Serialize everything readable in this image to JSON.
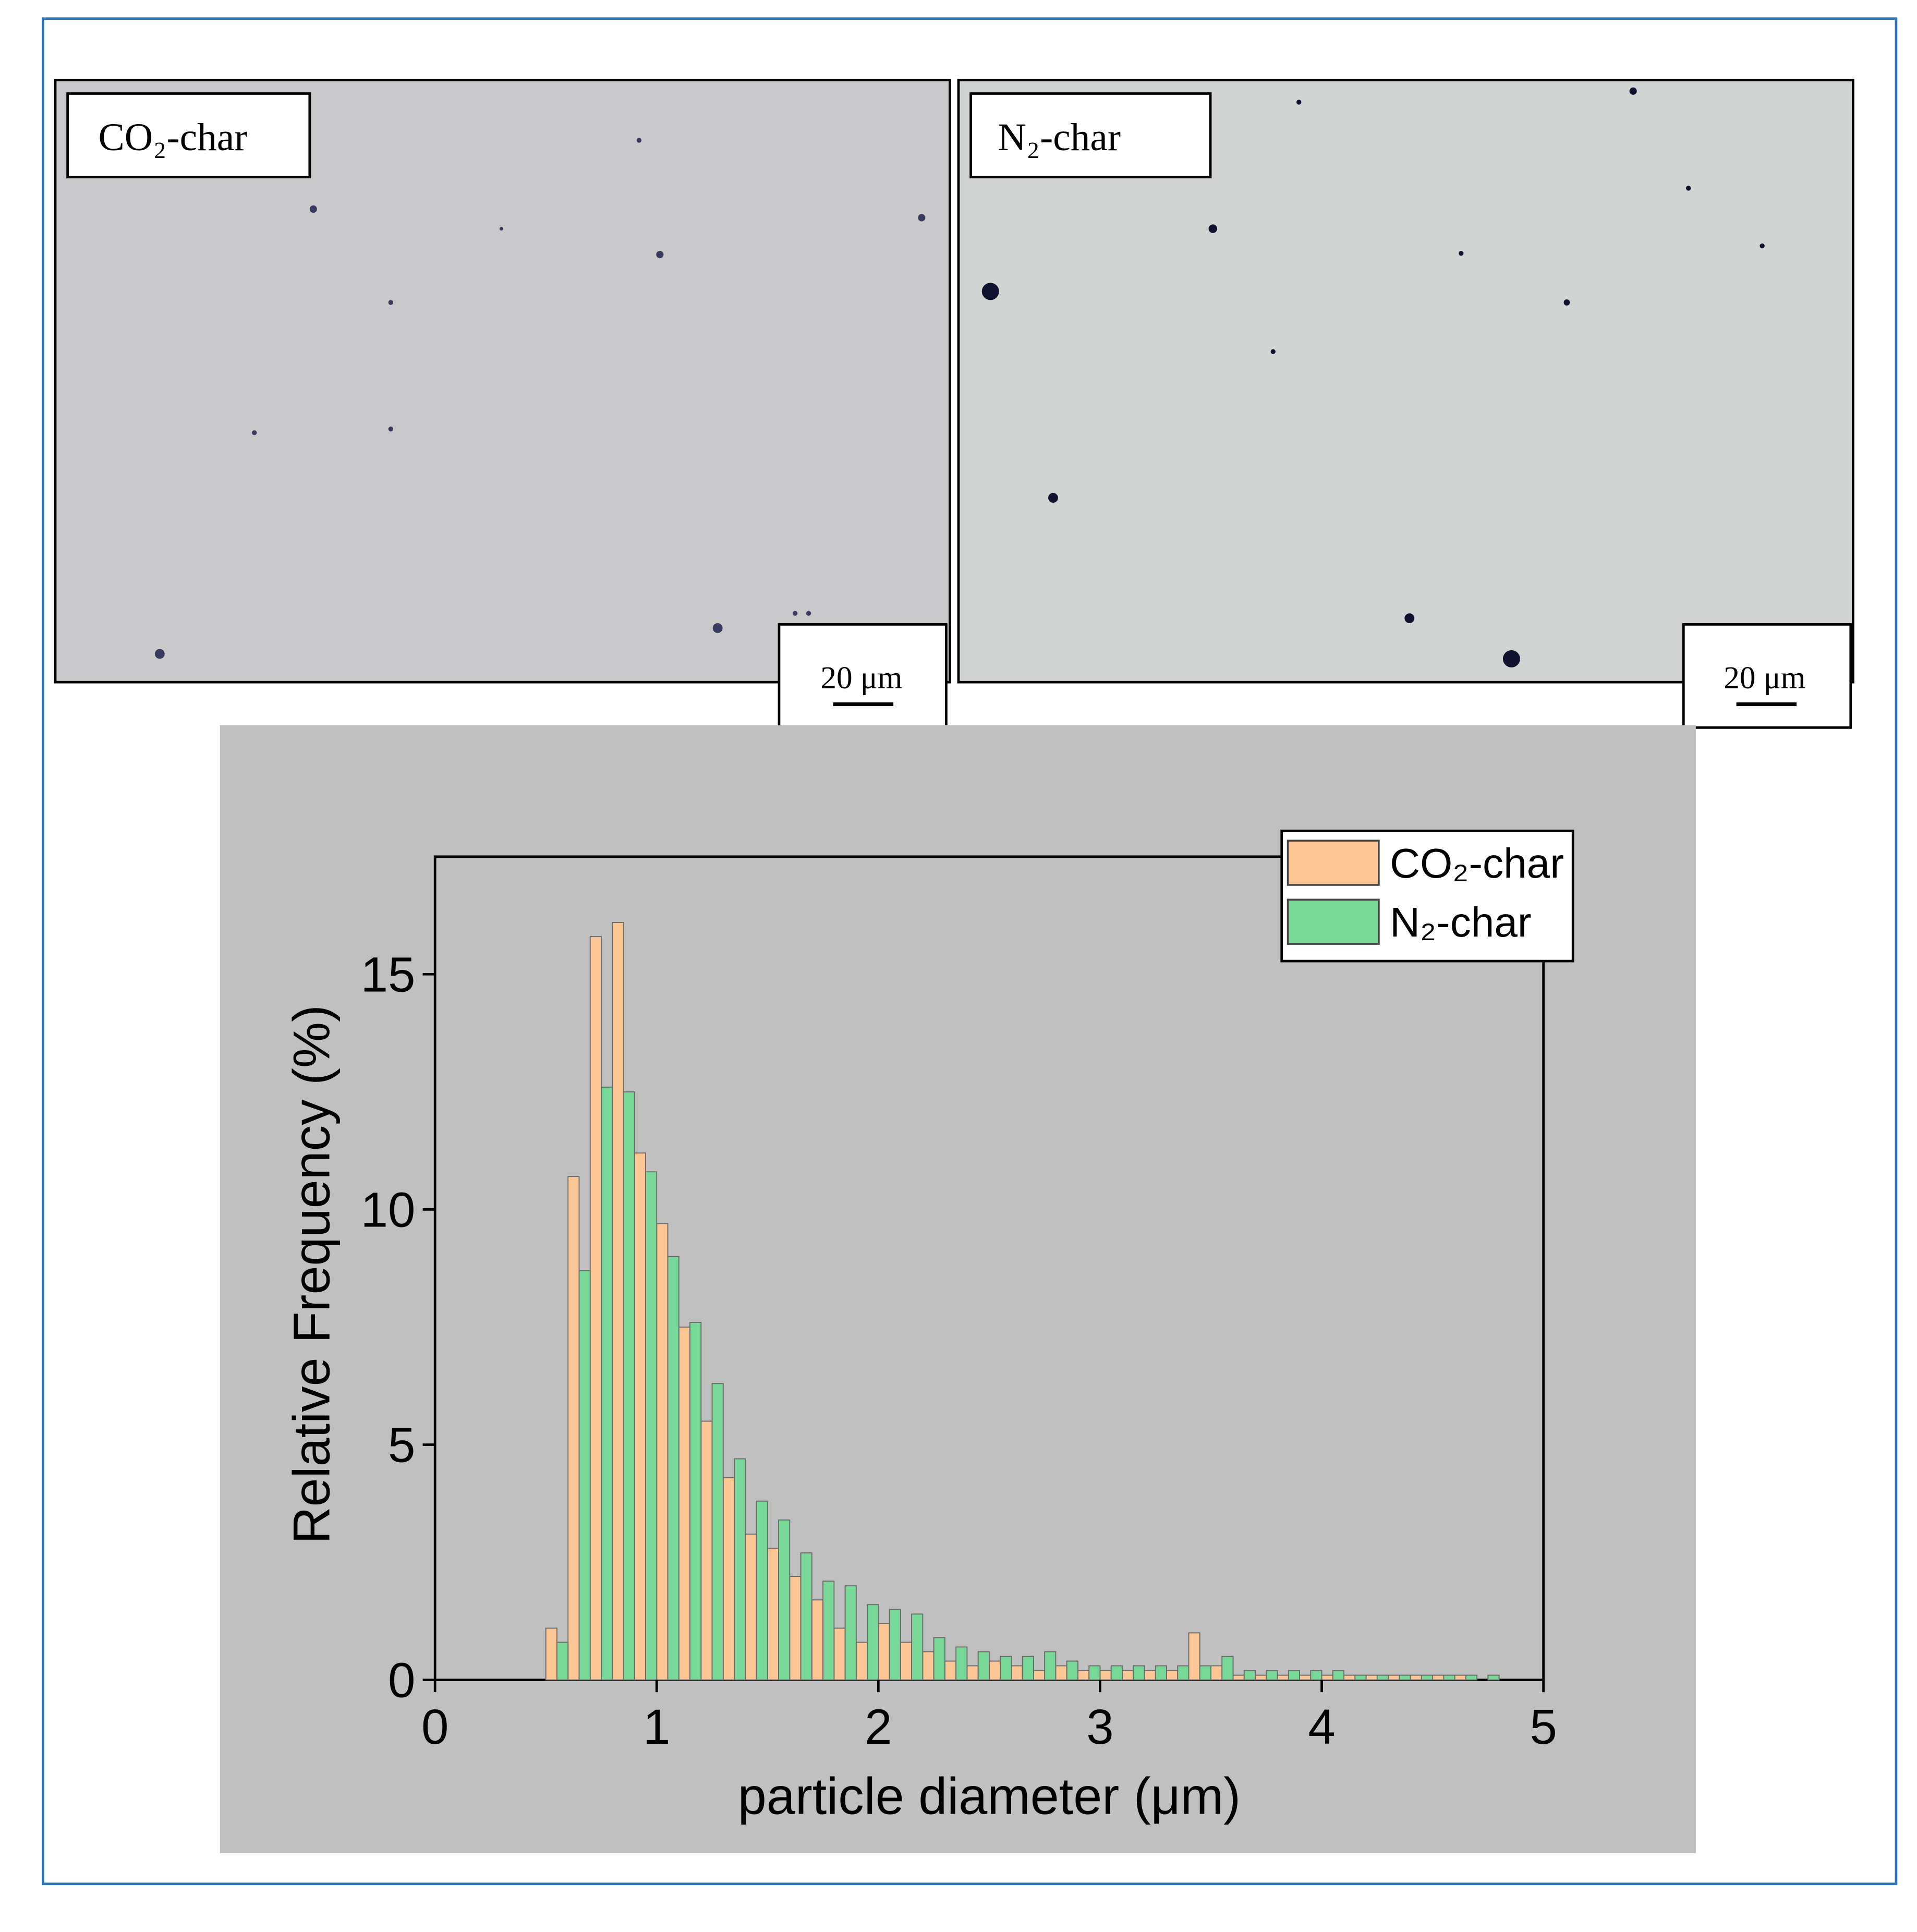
{
  "panels": [
    {
      "label": "CO₂-char",
      "scale_bar": "20 μm"
    },
    {
      "label": "N₂-char",
      "scale_bar": "20 μm"
    }
  ],
  "chart_data": {
    "type": "histogram",
    "xlabel": "particle diameter (μm)",
    "ylabel": "Relative Frequency (%)",
    "bins": [
      0.5,
      0.6,
      0.7,
      0.8,
      0.9,
      1.0,
      1.1,
      1.2,
      1.3,
      1.4,
      1.5,
      1.6,
      1.7,
      1.8,
      1.9,
      2.0,
      2.1,
      2.2,
      2.3,
      2.4,
      2.5,
      2.6,
      2.7,
      2.8,
      2.9,
      3.0,
      3.1,
      3.2,
      3.3,
      3.4,
      3.5,
      3.6,
      3.7,
      3.8,
      3.9,
      4.0,
      4.1,
      4.2,
      4.3,
      4.4,
      4.5,
      4.6,
      4.7,
      4.8
    ],
    "series": [
      {
        "name": "CO₂-char",
        "color": "#fdc795",
        "values": [
          1.1,
          10.7,
          15.8,
          16.1,
          11.2,
          9.7,
          7.5,
          5.5,
          4.3,
          3.1,
          2.8,
          2.2,
          1.7,
          1.1,
          0.8,
          1.2,
          0.8,
          0.6,
          0.4,
          0.3,
          0.4,
          0.3,
          0.2,
          0.3,
          0.2,
          0.2,
          0.2,
          0.2,
          0.2,
          1.0,
          0.3,
          0.1,
          0.1,
          0.1,
          0.1,
          0.1,
          0.1,
          0.1,
          0.1,
          0.1,
          0.1,
          0.1,
          0.0
        ]
      },
      {
        "name": "N₂-char",
        "color": "#78d898",
        "values": [
          0.8,
          8.7,
          12.6,
          12.5,
          10.8,
          9.0,
          7.6,
          6.3,
          4.7,
          3.8,
          3.4,
          2.7,
          2.1,
          2.0,
          1.6,
          1.5,
          1.4,
          0.9,
          0.7,
          0.6,
          0.5,
          0.5,
          0.6,
          0.4,
          0.3,
          0.3,
          0.3,
          0.3,
          0.3,
          0.3,
          0.5,
          0.2,
          0.2,
          0.2,
          0.2,
          0.2,
          0.1,
          0.1,
          0.1,
          0.1,
          0.1,
          0.1,
          0.1
        ]
      }
    ],
    "xlim": [
      0,
      5
    ],
    "xticks": [
      0,
      1,
      2,
      3,
      4,
      5
    ],
    "ylim": [
      0,
      17.5
    ],
    "yticks": [
      0,
      5,
      10,
      15
    ],
    "legend": "top-right",
    "background": "#c0c0c0"
  }
}
